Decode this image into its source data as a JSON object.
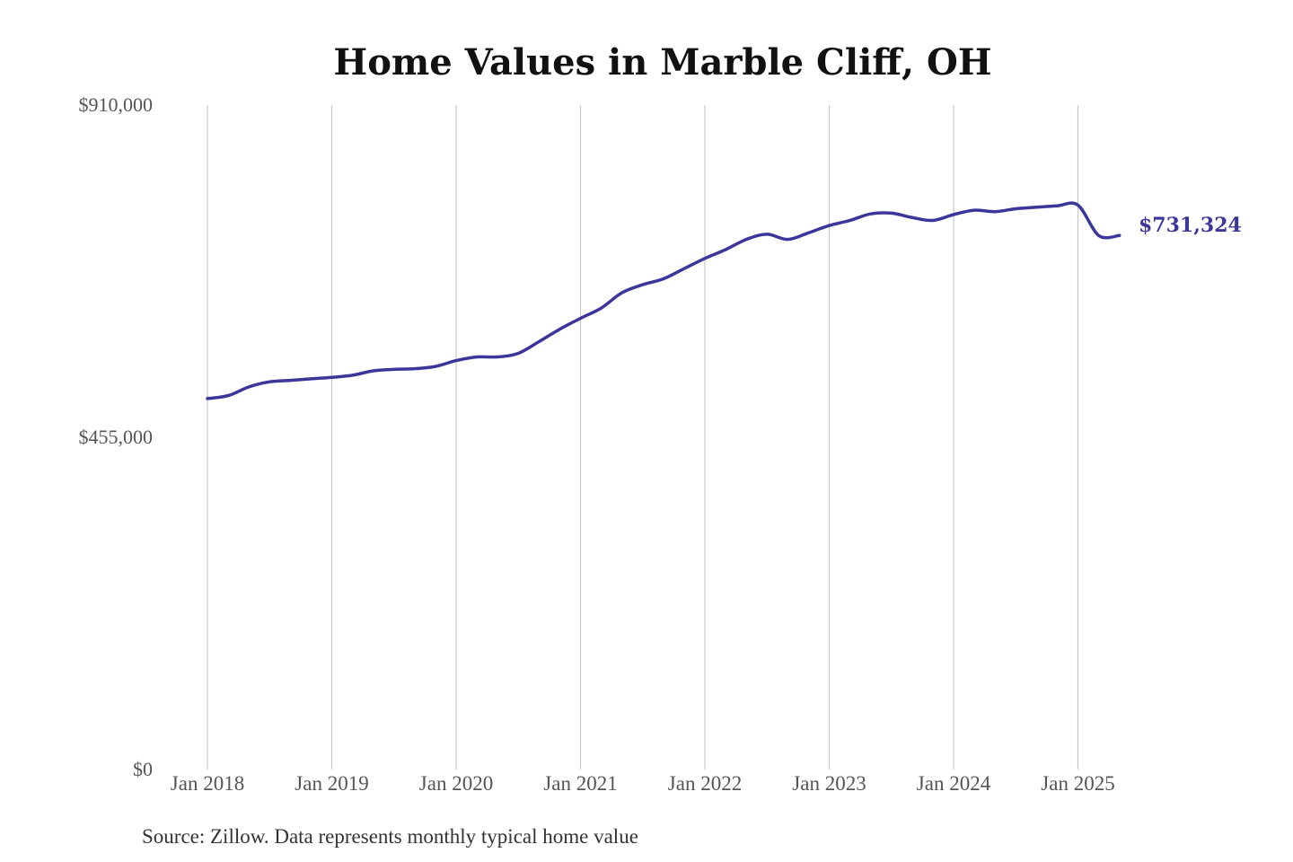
{
  "chart_data": {
    "type": "line",
    "title": "Home Values in Marble Cliff, OH",
    "source": "Source: Zillow. Data represents monthly typical home value",
    "xlabel": "",
    "ylabel": "",
    "ylim": [
      0,
      910000
    ],
    "y_ticks": [
      {
        "value": 0,
        "label": "$0"
      },
      {
        "value": 455000,
        "label": "$455,000"
      },
      {
        "value": 910000,
        "label": "$910,000"
      }
    ],
    "x_ticks": [
      {
        "year": 2018,
        "label": "Jan 2018"
      },
      {
        "year": 2019,
        "label": "Jan 2019"
      },
      {
        "year": 2020,
        "label": "Jan 2020"
      },
      {
        "year": 2021,
        "label": "Jan 2021"
      },
      {
        "year": 2022,
        "label": "Jan 2022"
      },
      {
        "year": 2023,
        "label": "Jan 2023"
      },
      {
        "year": 2024,
        "label": "Jan 2024"
      },
      {
        "year": 2025,
        "label": "Jan 2025"
      }
    ],
    "grid": "vertical",
    "line_color": "#3b3699",
    "end_label": "$731,324",
    "series": [
      {
        "x": [
          "2018-01",
          "2018-03",
          "2018-05",
          "2018-07",
          "2018-09",
          "2018-11",
          "2019-01",
          "2019-03",
          "2019-05",
          "2019-07",
          "2019-09",
          "2019-11",
          "2020-01",
          "2020-03",
          "2020-05",
          "2020-07",
          "2020-09",
          "2020-11",
          "2021-01",
          "2021-03",
          "2021-05",
          "2021-07",
          "2021-09",
          "2021-11",
          "2022-01",
          "2022-03",
          "2022-05",
          "2022-07",
          "2022-09",
          "2022-11",
          "2023-01",
          "2023-03",
          "2023-05",
          "2023-07",
          "2023-09",
          "2023-11",
          "2024-01",
          "2024-03",
          "2024-05",
          "2024-07",
          "2024-09",
          "2024-11",
          "2025-01",
          "2025-03",
          "2025-05"
        ],
        "values": [
          508000,
          512000,
          524000,
          531000,
          533000,
          535000,
          537000,
          540000,
          546000,
          548000,
          549000,
          552000,
          560000,
          565000,
          565000,
          570000,
          586000,
          603000,
          618000,
          632000,
          653000,
          664000,
          672000,
          686000,
          700000,
          712000,
          726000,
          733000,
          726000,
          735000,
          745000,
          752000,
          761000,
          762000,
          756000,
          752000,
          760000,
          766000,
          764000,
          768000,
          770000,
          772000,
          773000,
          731324,
          731324
        ]
      }
    ]
  }
}
